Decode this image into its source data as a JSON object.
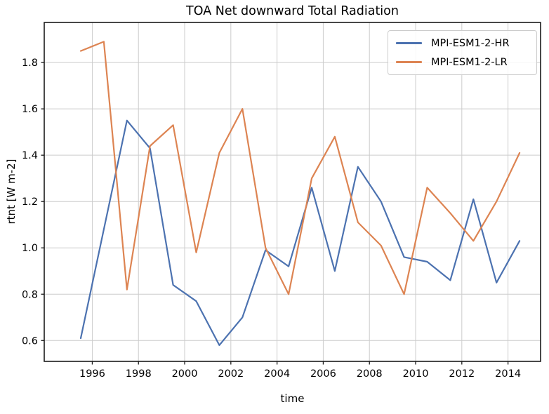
{
  "figure": {
    "title": "TOA Net downward Total Radiation",
    "xlabel": "time",
    "ylabel": "rtnt [W m-2]"
  },
  "legend": {
    "position": "upper right",
    "entries": [
      {
        "label": "MPI-ESM1-2-HR",
        "color": "#4C72B0"
      },
      {
        "label": "MPI-ESM1-2-LR",
        "color": "#DD8452"
      }
    ]
  },
  "style": {
    "background": "#ffffff",
    "grid_color": "#cccccc",
    "spine_color": "#1a1a1a",
    "tick_color": "#1a1a1a",
    "text_color": "#000000",
    "series_line_width": 2.2
  },
  "chart_data": {
    "type": "line",
    "title": "TOA Net downward Total Radiation",
    "xlabel": "time",
    "ylabel": "rtnt [W m-2]",
    "x": [
      1995.5,
      1996.5,
      1997.5,
      1998.5,
      1999.5,
      2000.5,
      2001.5,
      2002.5,
      2003.5,
      2004.5,
      2005.5,
      2006.5,
      2007.5,
      2008.5,
      2009.5,
      2010.5,
      2011.5,
      2012.5,
      2013.5,
      2014.5
    ],
    "series": [
      {
        "name": "MPI-ESM1-2-HR",
        "color": "#4C72B0",
        "values": [
          0.61,
          1.08,
          1.55,
          1.43,
          0.84,
          0.77,
          0.58,
          0.7,
          0.99,
          0.92,
          1.26,
          0.9,
          1.35,
          1.2,
          0.96,
          0.94,
          0.86,
          1.21,
          0.85,
          1.03
        ]
      },
      {
        "name": "MPI-ESM1-2-LR",
        "color": "#DD8452",
        "values": [
          1.85,
          1.89,
          0.82,
          1.44,
          1.53,
          0.98,
          1.41,
          1.6,
          1.0,
          0.8,
          1.3,
          1.48,
          1.11,
          1.01,
          0.8,
          1.26,
          1.15,
          1.03,
          1.2,
          1.41
        ]
      }
    ],
    "xlim": [
      1993.92,
      2015.41
    ],
    "ylim": [
      0.51,
      1.973
    ],
    "xticks": [
      1996,
      1998,
      2000,
      2002,
      2004,
      2006,
      2008,
      2010,
      2012,
      2014
    ],
    "xtick_labels": [
      "1996",
      "1998",
      "2000",
      "2002",
      "2004",
      "2006",
      "2008",
      "2010",
      "2012",
      "2014"
    ],
    "yticks": [
      0.6,
      0.8,
      1.0,
      1.2,
      1.4,
      1.6,
      1.8
    ],
    "ytick_labels": [
      "0.6",
      "0.8",
      "1.0",
      "1.2",
      "1.4",
      "1.6",
      "1.8"
    ],
    "grid": true,
    "legend_position": "upper right"
  }
}
